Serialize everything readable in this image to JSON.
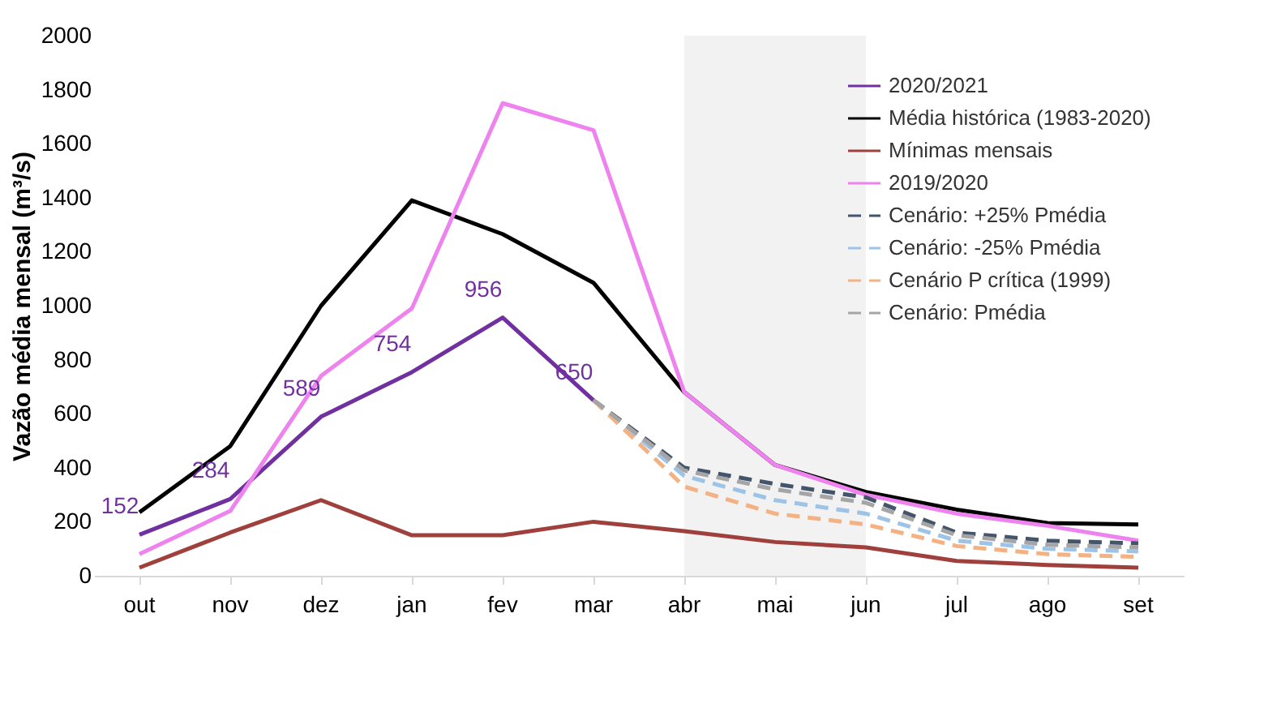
{
  "chart_data": {
    "type": "line",
    "ylabel": "Vazão média mensal (m³/s)",
    "categories": [
      "out",
      "nov",
      "dez",
      "jan",
      "fev",
      "mar",
      "abr",
      "mai",
      "jun",
      "jul",
      "ago",
      "set"
    ],
    "ylim": [
      0,
      2000
    ],
    "yticks": [
      0,
      200,
      400,
      600,
      800,
      1000,
      1200,
      1400,
      1600,
      1800,
      2000
    ],
    "grid": false,
    "legend": "top right",
    "marker": "none",
    "bands": [
      {
        "axis": "x",
        "from": "abr",
        "to": "jun",
        "color": "#f2f2f2"
      }
    ],
    "series": [
      {
        "name": "2020/2021",
        "color": "#7030a0",
        "line_style": "solid",
        "values": [
          152,
          284,
          589,
          754,
          956,
          650,
          null,
          null,
          null,
          null,
          null,
          null
        ],
        "value_labels": [
          "152",
          "284",
          "589",
          "754",
          "956",
          "650",
          null,
          null,
          null,
          null,
          null,
          null
        ]
      },
      {
        "name": "Média histórica (1983-2020)",
        "color": "#000000",
        "line_style": "solid",
        "values": [
          235,
          480,
          1000,
          1390,
          1265,
          1085,
          680,
          410,
          310,
          245,
          195,
          190
        ]
      },
      {
        "name": "Mínimas mensais",
        "color": "#a0403c",
        "line_style": "solid",
        "values": [
          30,
          160,
          280,
          150,
          150,
          200,
          165,
          125,
          105,
          55,
          40,
          30
        ]
      },
      {
        "name": "2019/2020",
        "color": "#ee82ee",
        "line_style": "solid",
        "values": [
          80,
          240,
          740,
          990,
          1750,
          1650,
          680,
          410,
          300,
          230,
          185,
          130
        ]
      },
      {
        "name": "Cenário: +25% Pmédia",
        "color": "#44546a",
        "line_style": "dashed",
        "values": [
          null,
          null,
          null,
          null,
          null,
          650,
          400,
          340,
          290,
          160,
          130,
          120
        ]
      },
      {
        "name": "Cenário: -25% Pmédia",
        "color": "#9dc3e6",
        "line_style": "dashed",
        "values": [
          null,
          null,
          null,
          null,
          null,
          650,
          370,
          280,
          230,
          130,
          100,
          90
        ]
      },
      {
        "name": "Cenário P crítica (1999)",
        "color": "#f4b183",
        "line_style": "dashed",
        "values": [
          null,
          null,
          null,
          null,
          null,
          650,
          330,
          230,
          190,
          110,
          80,
          70
        ]
      },
      {
        "name": "Cenário: Pmédia",
        "color": "#a5a5a5",
        "line_style": "dashed",
        "values": [
          null,
          null,
          null,
          null,
          null,
          650,
          390,
          320,
          270,
          150,
          115,
          105
        ]
      }
    ]
  }
}
